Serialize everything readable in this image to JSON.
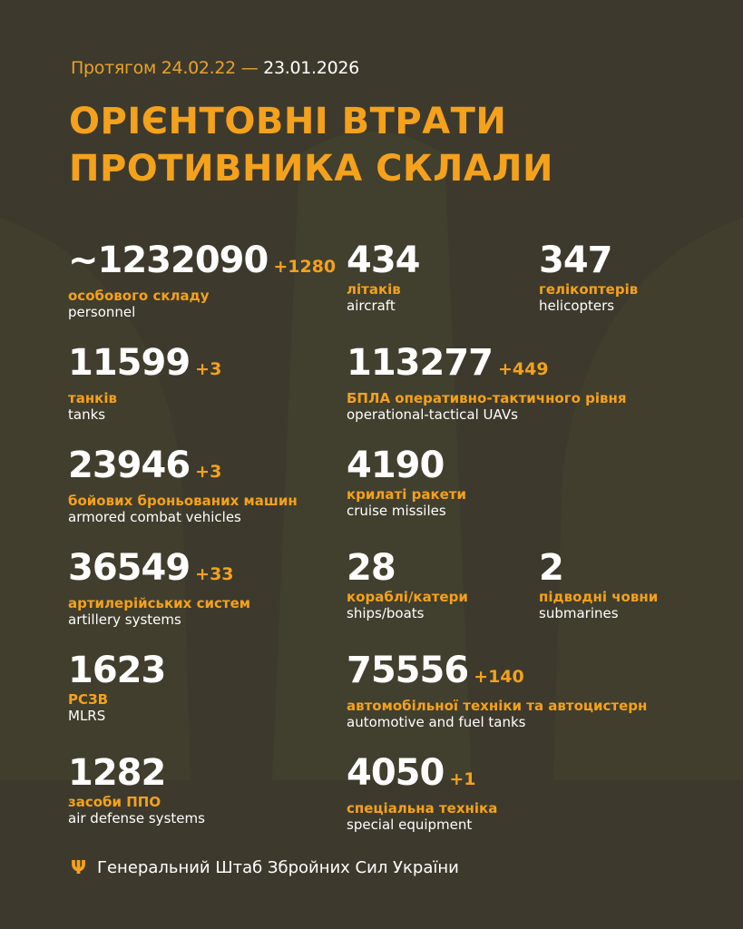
{
  "header": {
    "period_prefix": "Протягом 24.02.22 —",
    "period_end": "23.01.2026",
    "title_line1": "ОРІЄНТОВНІ ВТРАТИ",
    "title_line2": "ПРОТИВНИКА СКЛАЛИ"
  },
  "colors": {
    "background": "#3d3a2d",
    "accent": "#f4a11c",
    "text": "#ffffff"
  },
  "stats": [
    {
      "value": "~1232090",
      "delta": "+1280",
      "ua": "особового складу",
      "en": "personnel"
    },
    {
      "value": "434",
      "delta": "",
      "ua": "літаків",
      "en": "aircraft"
    },
    {
      "value": "347",
      "delta": "",
      "ua": "гелікоптерів",
      "en": "helicopters"
    },
    {
      "value": "11599",
      "delta": "+3",
      "ua": "танків",
      "en": "tanks"
    },
    {
      "value": "113277",
      "delta": "+449",
      "ua": "БПЛА оперативно-тактичного рівня",
      "en": "operational-tactical UAVs"
    },
    {
      "value": "23946",
      "delta": "+3",
      "ua": "бойових броньованих машин",
      "en": "armored combat vehicles"
    },
    {
      "value": "4190",
      "delta": "",
      "ua": "крилаті ракети",
      "en": "cruise missiles"
    },
    {
      "value": "36549",
      "delta": "+33",
      "ua": "артилерійських систем",
      "en": "artillery systems"
    },
    {
      "value": "28",
      "delta": "",
      "ua": "кораблі/катери",
      "en": "ships/boats"
    },
    {
      "value": "2",
      "delta": "",
      "ua": "підводні човни",
      "en": "submarines"
    },
    {
      "value": "1623",
      "delta": "",
      "ua": "РСЗВ",
      "en": "MLRS"
    },
    {
      "value": "75556",
      "delta": "+140",
      "ua": "автомобільної техніки та автоцистерн",
      "en": "automotive and fuel tanks"
    },
    {
      "value": "1282",
      "delta": "",
      "ua": "засоби ППО",
      "en": "air defense systems"
    },
    {
      "value": "4050",
      "delta": "+1",
      "ua": "спеціальна техніка",
      "en": "special equipment"
    }
  ],
  "footer": {
    "icon": "trident-icon",
    "text": "Генеральний Штаб Збройних Сил України"
  }
}
